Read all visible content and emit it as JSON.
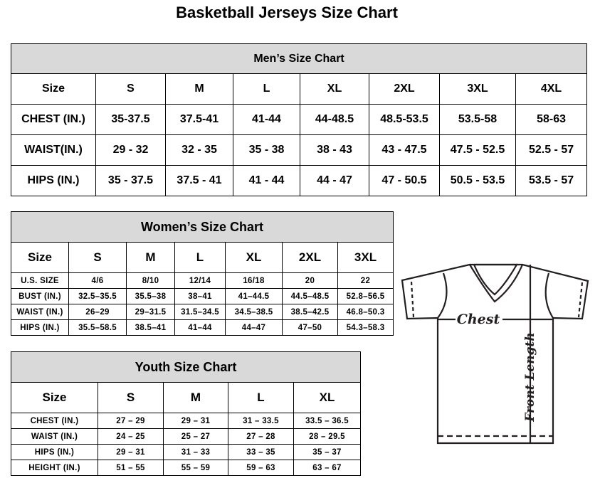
{
  "title": "Basketball Jerseys Size Chart",
  "men": {
    "title": "Men’s Size Chart",
    "header": [
      "Size",
      "S",
      "M",
      "L",
      "XL",
      "2XL",
      "3XL",
      "4XL"
    ],
    "rows": [
      [
        "CHEST (IN.)",
        "35-37.5",
        "37.5-41",
        "41-44",
        "44-48.5",
        "48.5-53.5",
        "53.5-58",
        "58-63"
      ],
      [
        "WAIST(IN.)",
        "29 - 32",
        "32 - 35",
        "35 - 38",
        "38 - 43",
        "43 - 47.5",
        "47.5 - 52.5",
        "52.5 - 57"
      ],
      [
        "HIPS (IN.)",
        "35 - 37.5",
        "37.5 - 41",
        "41 - 44",
        "44 - 47",
        "47 - 50.5",
        "50.5 - 53.5",
        "53.5 - 57"
      ]
    ]
  },
  "women": {
    "title": "Women’s Size Chart",
    "header": [
      "Size",
      "S",
      "M",
      "L",
      "XL",
      "2XL",
      "3XL"
    ],
    "rows": [
      [
        "U.S.  SIZE",
        "4/6",
        "8/10",
        "12/14",
        "16/18",
        "20",
        "22"
      ],
      [
        "BUST  (IN.)",
        "32.5–35.5",
        "35.5–38",
        "38–41",
        "41–44.5",
        "44.5–48.5",
        "52.8–56.5"
      ],
      [
        "WAIST  (IN.)",
        "26–29",
        "29–31.5",
        "31.5–34.5",
        "34.5–38.5",
        "38.5–42.5",
        "46.8–50.3"
      ],
      [
        "HIPS  (IN.)",
        "35.5–58.5",
        "38.5–41",
        "41–44",
        "44–47",
        "47–50",
        "54.3–58.3"
      ]
    ]
  },
  "youth": {
    "title": "Youth Size Chart",
    "header": [
      "Size",
      "S",
      "M",
      "L",
      "XL"
    ],
    "rows": [
      [
        "CHEST  (IN.)",
        "27  –  29",
        "29  –  31",
        "31  –  33.5",
        "33.5  –  36.5"
      ],
      [
        "WAIST  (IN.)",
        "24  –  25",
        "25  –  27",
        "27  –  28",
        "28  –  29.5"
      ],
      [
        "HIPS  (IN.)",
        "29  –  31",
        "31  –  33",
        "33  –  35",
        "35  –  37"
      ],
      [
        "HEIGHT  (IN.)",
        "51  –  55",
        "55  –  59",
        "59  –  63",
        "63  –  67"
      ]
    ]
  },
  "diagram": {
    "chest_label": "Chest",
    "length_label": "Front Length",
    "line_color": "#231f20"
  }
}
